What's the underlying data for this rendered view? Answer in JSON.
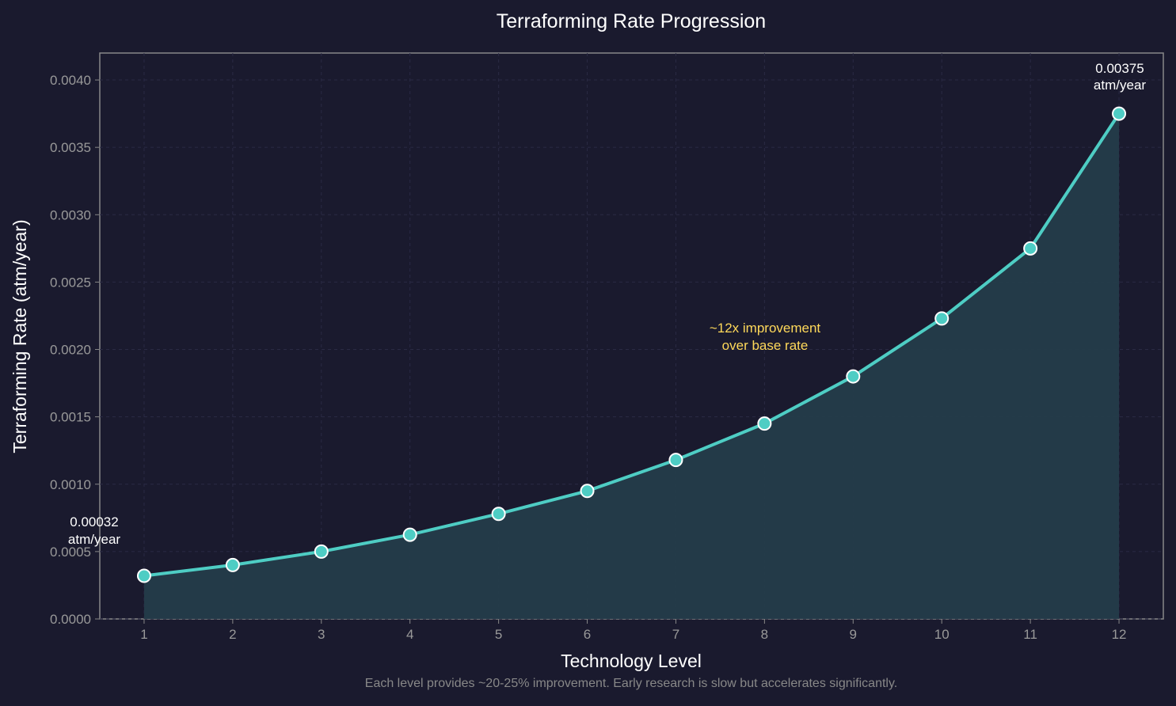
{
  "chart_data": {
    "type": "line",
    "title": "Terraforming Rate Progression",
    "xlabel": "Technology Level",
    "ylabel": "Terraforming Rate (atm/year)",
    "caption": "Each level provides ~20-25% improvement. Early research is slow but accelerates significantly.",
    "x": [
      1,
      2,
      3,
      4,
      5,
      6,
      7,
      8,
      9,
      10,
      11,
      12
    ],
    "values": [
      0.00032,
      0.0004,
      0.0005,
      0.000625,
      0.00078,
      0.00095,
      0.00118,
      0.00145,
      0.0018,
      0.00223,
      0.00275,
      0.00375
    ],
    "xlim": [
      0.5,
      12.5
    ],
    "ylim": [
      0,
      0.0042
    ],
    "yticks": [
      "0.0000",
      "0.0005",
      "0.0010",
      "0.0015",
      "0.0020",
      "0.0025",
      "0.0030",
      "0.0035",
      "0.0040"
    ],
    "xticks": [
      "1",
      "2",
      "3",
      "4",
      "5",
      "6",
      "7",
      "8",
      "9",
      "10",
      "11",
      "12"
    ],
    "grid": true,
    "area_fill": true,
    "annotations": {
      "start": [
        "0.00032",
        "atm/year"
      ],
      "end": [
        "0.00375",
        "atm/year"
      ],
      "middle": [
        "~12x improvement",
        "over base rate"
      ]
    },
    "colors": {
      "background": "#1a1a2e",
      "line": "#4ecdc4",
      "fill": "#243c4a",
      "annotation": "#ffd95a",
      "text": "#ffffff",
      "tick": "#999999"
    }
  }
}
